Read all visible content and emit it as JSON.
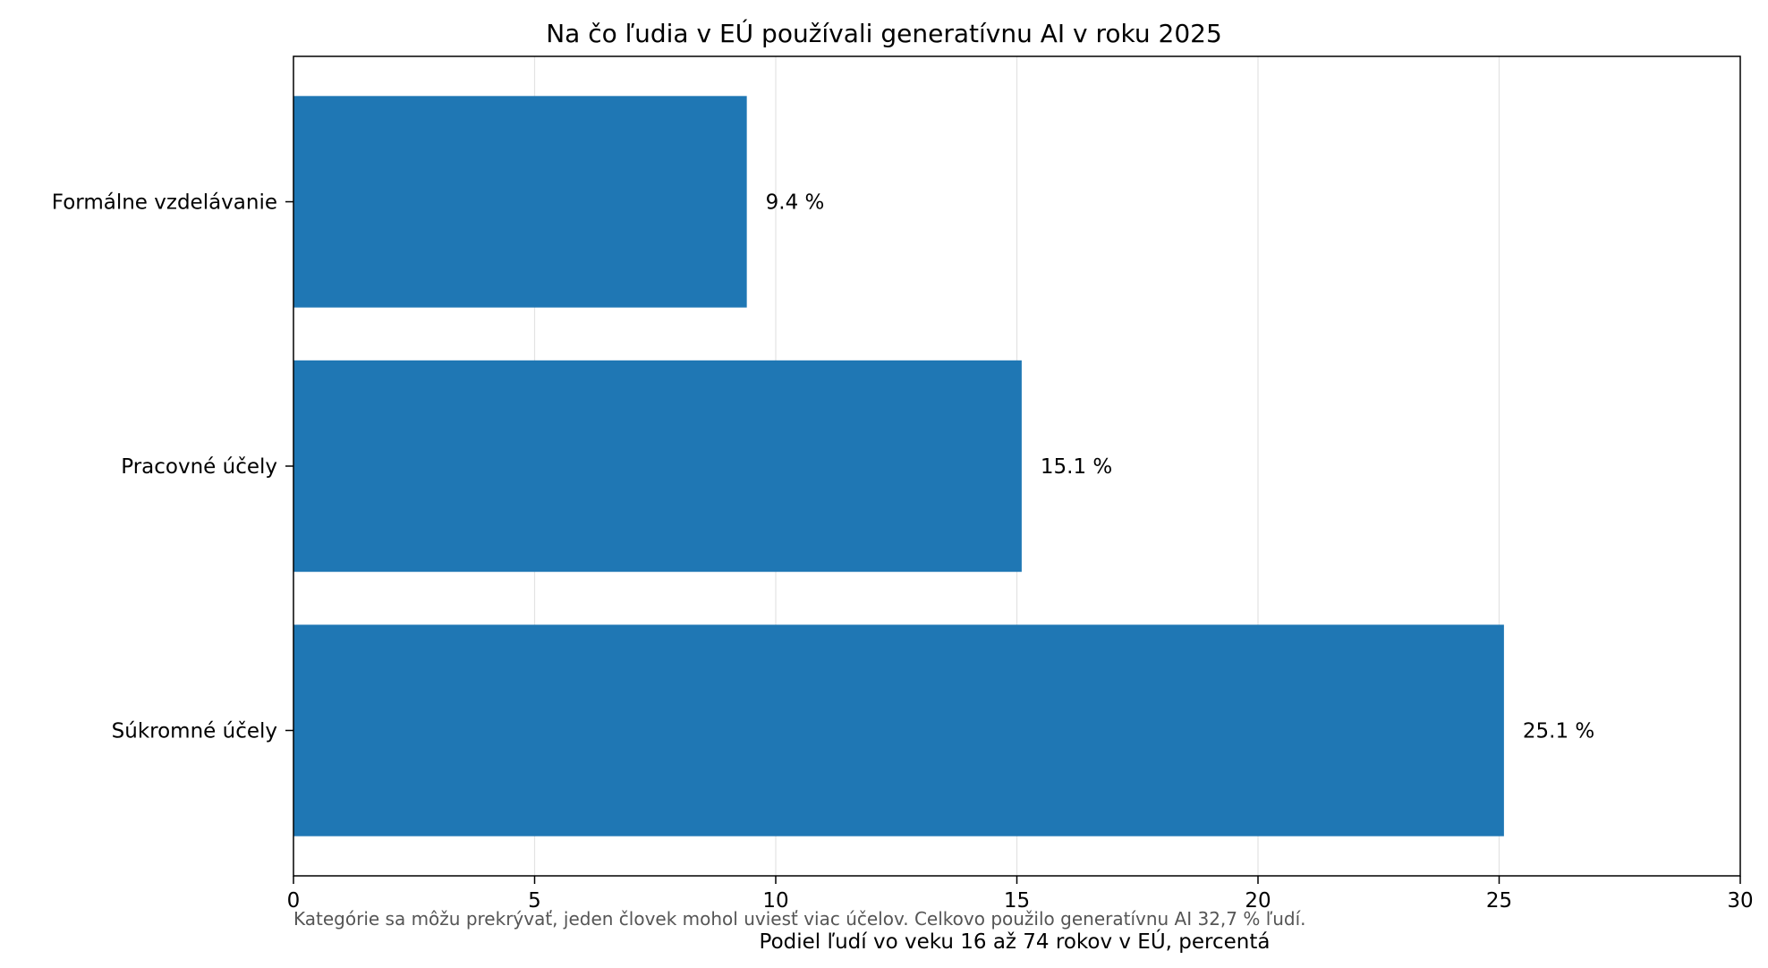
{
  "chart_data": {
    "type": "bar",
    "orientation": "horizontal",
    "title": "Na čo ľudia v EÚ používali generatívnu AI v roku 2025",
    "xlabel": "Podiel ľudí vo veku 16 až 74 rokov v EÚ, percentá",
    "ylabel": "",
    "categories": [
      "Formálne vzdelávanie",
      "Pracovné účely",
      "Súkromné účely"
    ],
    "values": [
      9.4,
      15.1,
      25.1
    ],
    "value_labels": [
      "9.4 %",
      "15.1 %",
      "25.1 %"
    ],
    "xlim": [
      0,
      30
    ],
    "xticks": [
      0,
      5,
      10,
      15,
      20,
      25,
      30
    ],
    "xtick_labels": [
      "0",
      "5",
      "10",
      "15",
      "20",
      "25",
      "30"
    ],
    "grid": "vertical",
    "bar_color": "#1f77b4",
    "footnote": "Kategórie sa môžu prekrývať, jeden človek mohol uviesť viac účelov. Celkovo použilo generatívnu AI 32,7 % ľudí."
  }
}
